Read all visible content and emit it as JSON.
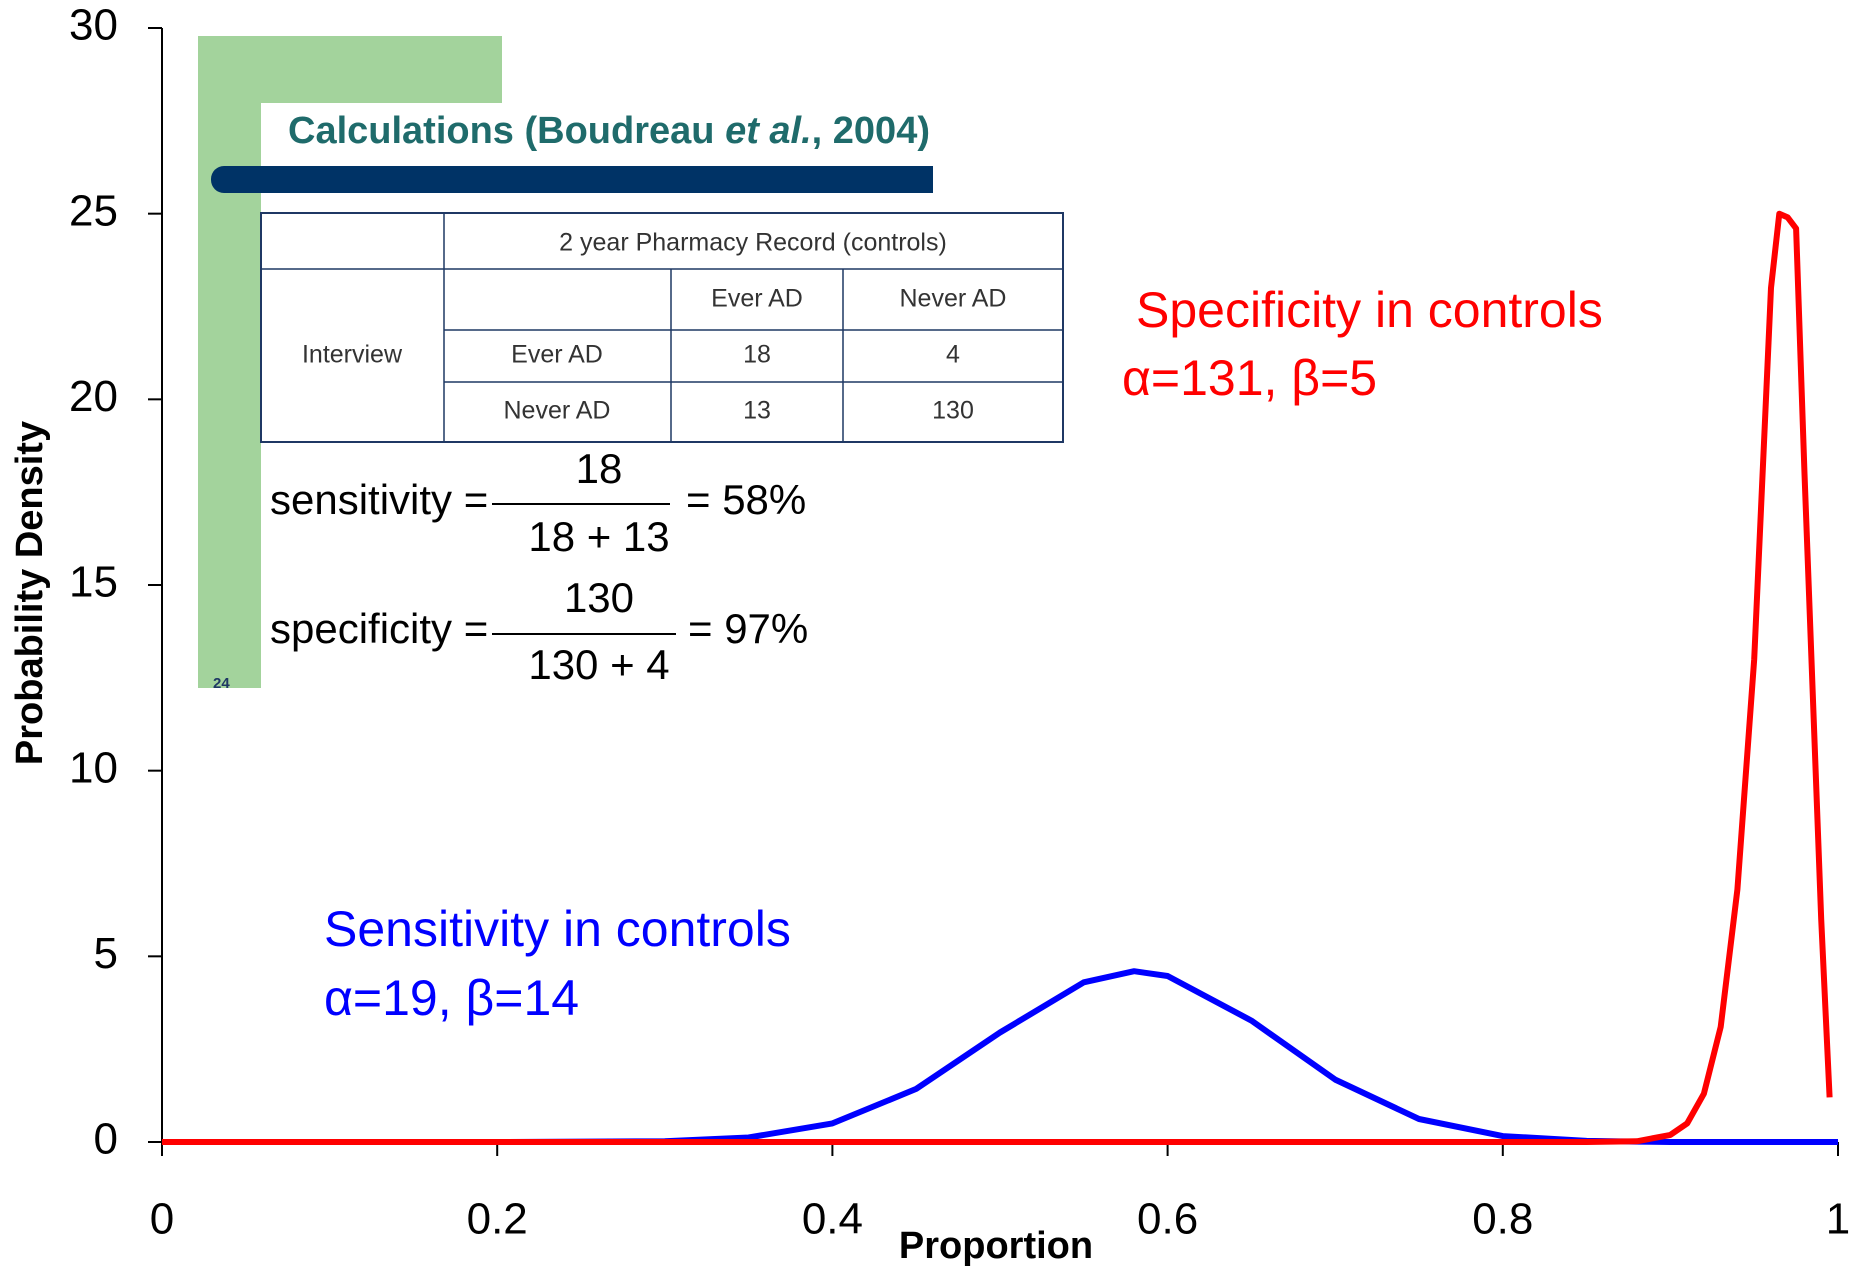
{
  "chart_data": {
    "type": "line",
    "xlabel": "Proportion",
    "ylabel": "Probability Density",
    "x": [
      0,
      0.1,
      0.2,
      0.3,
      0.35,
      0.4,
      0.45,
      0.5,
      0.55,
      0.58,
      0.6,
      0.65,
      0.7,
      0.75,
      0.8,
      0.85,
      0.88,
      0.9,
      0.91,
      0.92,
      0.93,
      0.94,
      0.95,
      0.96,
      0.965,
      0.97,
      0.975,
      0.98,
      0.99,
      0.995,
      1
    ],
    "series": [
      {
        "name": "Sensitivity in controls",
        "color": "#0000ff",
        "values": [
          0,
          0,
          0,
          0.02,
          0.12,
          0.5,
          1.43,
          2.95,
          4.3,
          4.6,
          4.47,
          3.27,
          1.68,
          0.62,
          0.16,
          0.03,
          0.01,
          0,
          0,
          0,
          0,
          0,
          0,
          0,
          0,
          0,
          0,
          0,
          0,
          0,
          0
        ]
      },
      {
        "name": "Specificity in controls",
        "color": "#ff0000",
        "values": [
          0,
          0,
          0,
          0,
          0,
          0,
          0,
          0,
          0,
          0,
          0,
          0,
          0,
          0,
          0,
          0,
          0.02,
          0.19,
          0.5,
          1.3,
          3.1,
          6.8,
          13,
          23,
          25,
          24.9,
          24.6,
          18,
          6,
          1.2,
          null
        ]
      }
    ],
    "annotations": [
      {
        "lines": [
          "Specificity in controls",
          "α=131, β=5"
        ],
        "color": "#ff0000"
      },
      {
        "lines": [
          "Sensitivity in controls",
          "α=19, β=14"
        ],
        "color": "#0000ff"
      }
    ],
    "xlim": [
      0,
      1
    ],
    "xticks": [
      0,
      0.2,
      0.4,
      0.6,
      0.8,
      1
    ],
    "ylim": [
      0,
      30
    ],
    "yticks": [
      0,
      5,
      10,
      15,
      20,
      25,
      30
    ],
    "inset": {
      "title": [
        "Calculations (Boudreau ",
        "et al.",
        ", 2004)"
      ],
      "page": "24",
      "table": {
        "header": "2 year Pharmacy Record (controls)",
        "columns": [
          "Ever AD",
          "Never AD"
        ],
        "row_group": "Interview",
        "rows": [
          [
            "Ever AD",
            "18",
            "4"
          ],
          [
            "Never AD",
            "13",
            "130"
          ]
        ]
      },
      "formulas": [
        {
          "label": "sensitivity =",
          "numerator": "18",
          "denominator": "18 + 13",
          "result": "= 58%"
        },
        {
          "label": "specificity =",
          "numerator": "130",
          "denominator": "130 + 4",
          "result": "= 97%"
        }
      ]
    }
  }
}
